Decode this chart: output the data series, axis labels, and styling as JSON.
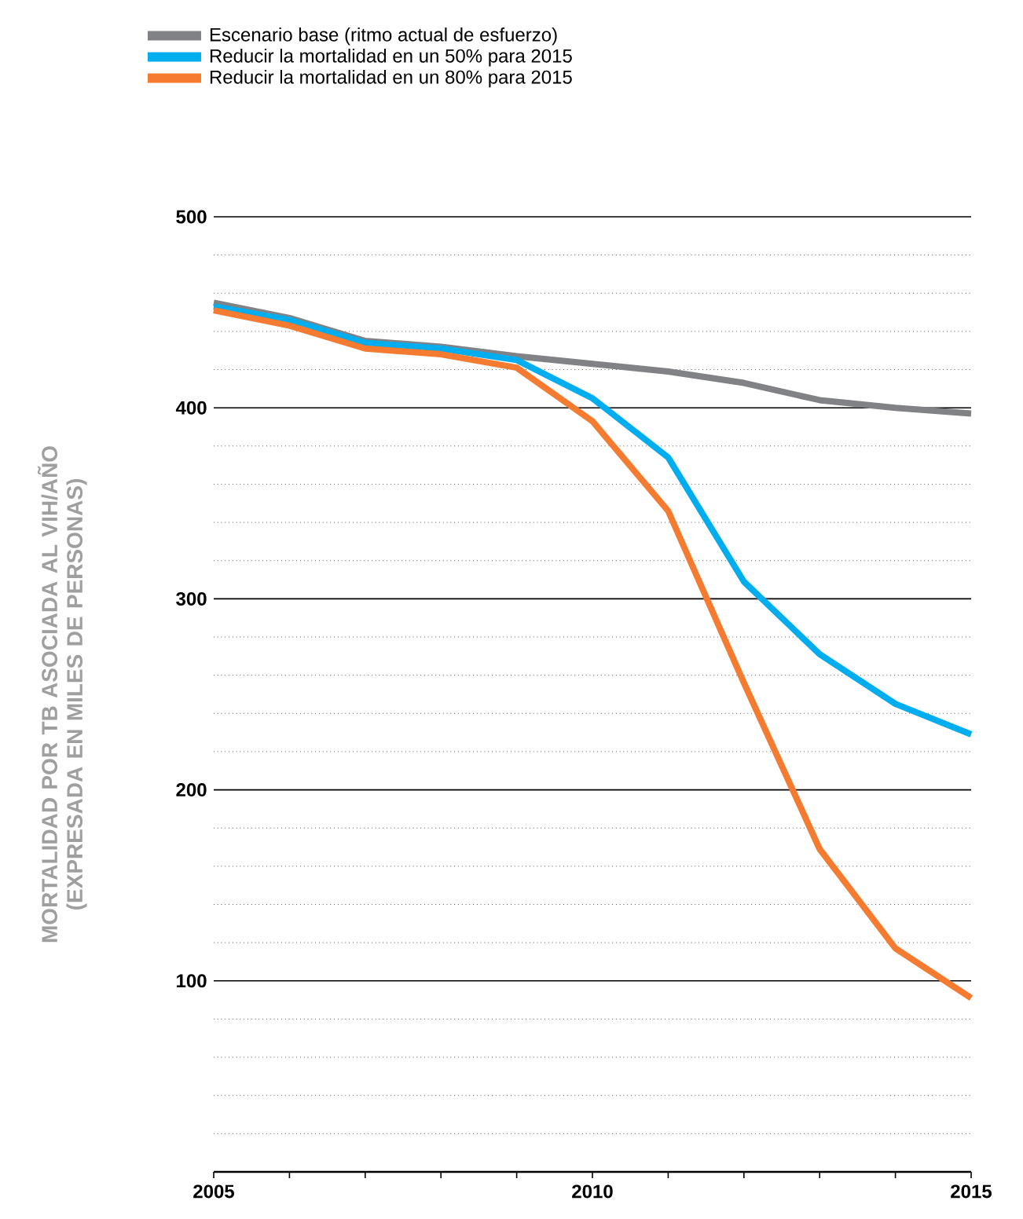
{
  "chart_data": {
    "type": "line",
    "ylabel": "MORTALIDAD POR TB ASOCIADA AL VIH/AÑO (EXPRESADA EN MILES DE PERSONAS)",
    "x": [
      2005,
      2006,
      2007,
      2008,
      2009,
      2010,
      2011,
      2012,
      2013,
      2014,
      2015
    ],
    "series": [
      {
        "name": "Escenario base (ritmo actual de esfuerzo)",
        "color": "#808285",
        "values": [
          455,
          447,
          435,
          432,
          427,
          423,
          419,
          413,
          404,
          400,
          397
        ]
      },
      {
        "name": "Reducir la mortalidad en un 50% para 2015",
        "color": "#00aeef",
        "values": [
          453,
          446,
          434,
          431,
          425,
          405,
          374,
          309,
          271,
          245,
          229
        ]
      },
      {
        "name": "Reducir la mortalidad en un 80% para 2015",
        "color": "#f47b30",
        "values": [
          451,
          443,
          431,
          428,
          421,
          393,
          346,
          256,
          169,
          117,
          91
        ]
      }
    ],
    "xlim": [
      2005,
      2015
    ],
    "xticks": [
      2005,
      {
        "value": 2006,
        "label": null
      },
      {
        "value": 2007,
        "label": null
      },
      {
        "value": 2008,
        "label": null
      },
      {
        "value": 2009,
        "label": null
      },
      2010,
      {
        "value": 2011,
        "label": null
      },
      {
        "value": 2012,
        "label": null
      },
      {
        "value": 2013,
        "label": null
      },
      {
        "value": 2014,
        "label": null
      },
      2015
    ],
    "ylim": [
      0,
      500
    ],
    "yticks": [
      {
        "value": 20,
        "label": null
      },
      {
        "value": 40,
        "label": null
      },
      {
        "value": 60,
        "label": null
      },
      {
        "value": 80,
        "label": null
      },
      100,
      {
        "value": 120,
        "label": null
      },
      {
        "value": 140,
        "label": null
      },
      {
        "value": 160,
        "label": null
      },
      {
        "value": 180,
        "label": null
      },
      200,
      {
        "value": 220,
        "label": null
      },
      {
        "value": 240,
        "label": null
      },
      {
        "value": 260,
        "label": null
      },
      {
        "value": 280,
        "label": null
      },
      300,
      {
        "value": 320,
        "label": null
      },
      {
        "value": 340,
        "label": null
      },
      {
        "value": 360,
        "label": null
      },
      {
        "value": 380,
        "label": null
      },
      400,
      {
        "value": 420,
        "label": null
      },
      {
        "value": 440,
        "label": null
      },
      {
        "value": 460,
        "label": null
      },
      {
        "value": 480,
        "label": null
      },
      500
    ],
    "grid": "y",
    "legend": "top left"
  }
}
